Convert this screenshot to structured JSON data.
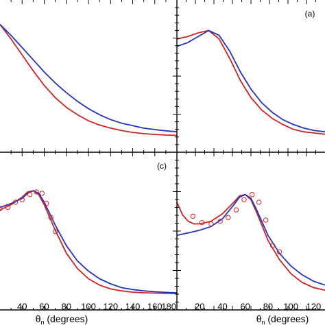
{
  "chart_data": [
    {
      "panel": "top-left",
      "type": "line",
      "label": "",
      "xlim": [
        20,
        180
      ],
      "ylim": [
        0,
        1
      ],
      "grid": false,
      "series": [
        {
          "color": "#cc2222",
          "x": [
            20,
            30,
            40,
            50,
            60,
            70,
            80,
            90,
            100,
            110,
            120,
            130,
            140,
            150,
            160,
            170,
            180
          ],
          "y": [
            0.98,
            0.86,
            0.73,
            0.6,
            0.48,
            0.38,
            0.3,
            0.24,
            0.19,
            0.155,
            0.13,
            0.11,
            0.095,
            0.085,
            0.078,
            0.073,
            0.07
          ]
        },
        {
          "color": "#2233bb",
          "x": [
            20,
            30,
            40,
            50,
            60,
            70,
            80,
            90,
            100,
            110,
            120,
            130,
            140,
            150,
            160,
            170,
            180
          ],
          "y": [
            0.98,
            0.89,
            0.79,
            0.69,
            0.59,
            0.5,
            0.42,
            0.35,
            0.29,
            0.24,
            0.2,
            0.17,
            0.15,
            0.13,
            0.118,
            0.108,
            0.1
          ]
        }
      ]
    },
    {
      "panel": "top-right",
      "type": "line",
      "label": "(a)",
      "xlim": [
        0,
        140
      ],
      "ylim": [
        0,
        1
      ],
      "grid": false,
      "series": [
        {
          "color": "#cc2222",
          "x": [
            0,
            10,
            20,
            30,
            40,
            50,
            60,
            70,
            80,
            90,
            100,
            110,
            120,
            130,
            140
          ],
          "y": [
            0.86,
            0.88,
            0.91,
            0.93,
            0.86,
            0.7,
            0.52,
            0.38,
            0.28,
            0.21,
            0.16,
            0.12,
            0.1,
            0.09,
            0.08
          ]
        },
        {
          "color": "#2233bb",
          "x": [
            0,
            10,
            20,
            30,
            40,
            50,
            60,
            70,
            80,
            90,
            100,
            110,
            120,
            130,
            140
          ],
          "y": [
            0.8,
            0.83,
            0.88,
            0.93,
            0.89,
            0.76,
            0.59,
            0.45,
            0.34,
            0.26,
            0.2,
            0.16,
            0.13,
            0.11,
            0.1
          ]
        }
      ]
    },
    {
      "panel": "bottom-left",
      "type": "line",
      "label": "(c)",
      "xlim": [
        20,
        180
      ],
      "ylim": [
        0,
        1
      ],
      "xlabel": "θn (degrees)",
      "xticks": [
        "40",
        "60",
        "80",
        "100",
        "120",
        "140",
        "160",
        "180"
      ],
      "grid": false,
      "series": [
        {
          "color": "#cc2222",
          "x": [
            20,
            30,
            40,
            45,
            50,
            55,
            60,
            70,
            80,
            90,
            100,
            110,
            120,
            130,
            140,
            150,
            160,
            170,
            180
          ],
          "y": [
            0.72,
            0.76,
            0.82,
            0.86,
            0.87,
            0.84,
            0.76,
            0.56,
            0.38,
            0.26,
            0.18,
            0.13,
            0.1,
            0.085,
            0.075,
            0.07,
            0.067,
            0.065,
            0.064
          ]
        },
        {
          "color": "#2233bb",
          "x": [
            20,
            30,
            40,
            45,
            50,
            55,
            60,
            70,
            80,
            90,
            100,
            110,
            120,
            130,
            140,
            150,
            160,
            170,
            180
          ],
          "y": [
            0.74,
            0.77,
            0.81,
            0.85,
            0.87,
            0.85,
            0.78,
            0.6,
            0.44,
            0.32,
            0.24,
            0.18,
            0.14,
            0.11,
            0.095,
            0.085,
            0.078,
            0.073,
            0.07
          ]
        },
        {
          "color": "#cc2222",
          "style": "markers",
          "x": [
            20,
            27,
            34,
            40,
            47,
            53,
            58,
            62,
            66,
            70
          ],
          "y": [
            0.73,
            0.74,
            0.78,
            0.8,
            0.84,
            0.86,
            0.85,
            0.77,
            0.66,
            0.55
          ]
        }
      ]
    },
    {
      "panel": "bottom-right",
      "type": "line",
      "label": "",
      "xlim": [
        0,
        130
      ],
      "ylim": [
        0,
        1
      ],
      "xlabel": "θn (degrees)",
      "xticks": [
        "20",
        "40",
        "60",
        "80",
        "100",
        "120"
      ],
      "grid": false,
      "series": [
        {
          "color": "#cc2222",
          "x": [
            0,
            5,
            10,
            15,
            20,
            30,
            40,
            50,
            55,
            60,
            65,
            70,
            80,
            90,
            100,
            110,
            120,
            130
          ],
          "y": [
            0.78,
            0.68,
            0.63,
            0.61,
            0.61,
            0.63,
            0.69,
            0.78,
            0.83,
            0.84,
            0.8,
            0.7,
            0.48,
            0.33,
            0.22,
            0.15,
            0.11,
            0.09
          ]
        },
        {
          "color": "#2233bb",
          "x": [
            0,
            5,
            10,
            15,
            20,
            30,
            40,
            50,
            55,
            60,
            65,
            70,
            80,
            90,
            100,
            110,
            120,
            130
          ],
          "y": [
            0.52,
            0.53,
            0.54,
            0.55,
            0.56,
            0.59,
            0.65,
            0.76,
            0.82,
            0.84,
            0.81,
            0.72,
            0.52,
            0.38,
            0.28,
            0.21,
            0.16,
            0.13
          ]
        },
        {
          "color": "#cc2222",
          "style": "markers",
          "x": [
            14,
            22,
            30,
            38,
            45,
            52,
            59,
            66,
            72,
            78,
            84,
            90
          ],
          "y": [
            0.67,
            0.62,
            0.61,
            0.63,
            0.66,
            0.72,
            0.8,
            0.84,
            0.78,
            0.64,
            0.44,
            0.39
          ]
        }
      ]
    }
  ]
}
